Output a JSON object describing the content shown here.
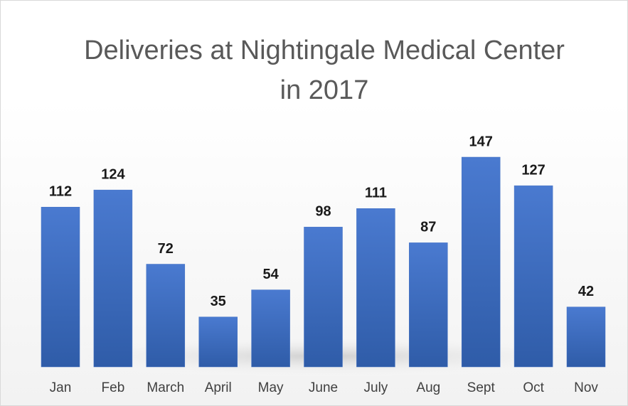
{
  "chart_data": {
    "type": "bar",
    "title": "Deliveries at Nightingale Medical Center in 2017",
    "categories": [
      "Jan",
      "Feb",
      "March",
      "April",
      "May",
      "June",
      "July",
      "Aug",
      "Sept",
      "Oct",
      "Nov"
    ],
    "values": [
      112,
      124,
      72,
      35,
      54,
      98,
      111,
      87,
      147,
      127,
      42
    ],
    "color": "#4472c4"
  }
}
